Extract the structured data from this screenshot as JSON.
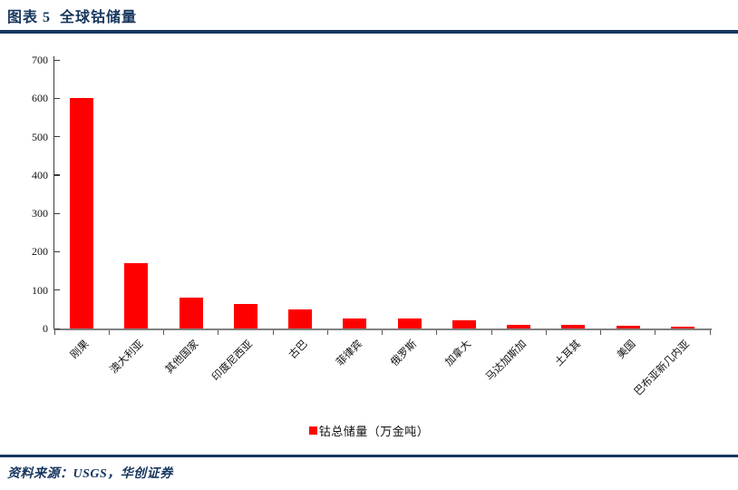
{
  "header": {
    "title": "图表 5  全球钴储量"
  },
  "legend": {
    "label": "钴总储量（万金吨）"
  },
  "footer": {
    "source": "资料来源：USGS，华创证券"
  },
  "colors": {
    "accent_navy": "#17375E",
    "bar_red": "#FF0000",
    "axis_dark": "#3A3A3A",
    "axis_gray": "#808080"
  },
  "chart_data": {
    "type": "bar",
    "title": "全球钴储量",
    "series_name": "钴总储量（万金吨）",
    "categories": [
      "刚果",
      "澳大利亚",
      "其他国家",
      "印度尼西亚",
      "古巴",
      "菲律宾",
      "俄罗斯",
      "加拿大",
      "马达加斯加",
      "土耳其",
      "美国",
      "巴布亚新几内亚"
    ],
    "values": [
      600,
      170,
      80,
      64,
      50,
      26,
      25,
      22,
      10,
      9,
      6,
      5
    ],
    "xlabel": "",
    "ylabel": "",
    "ylim": [
      0,
      700
    ],
    "ytick_interval": 100,
    "grid": false,
    "legend_position": "bottom",
    "bar_color": "#FF0000",
    "x_label_rotation_deg": -45
  }
}
